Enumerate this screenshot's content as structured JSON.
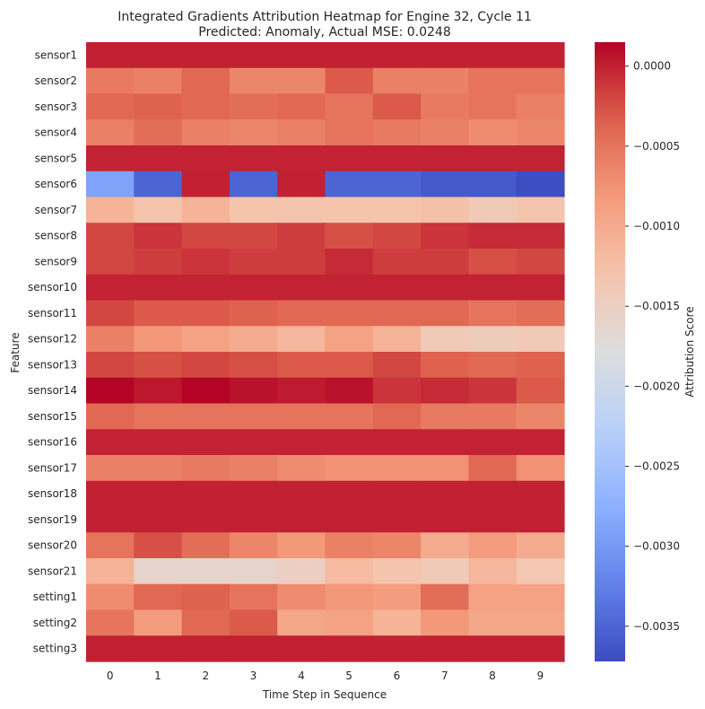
{
  "chart_data": {
    "type": "heatmap",
    "title": "Integrated Gradients Attribution Heatmap for Engine 32, Cycle 11",
    "subtitle": "Predicted: Anomaly, Actual MSE: 0.0248",
    "xlabel": "Time Step in Sequence",
    "ylabel": "Feature",
    "colorbar_label": "Attribution Score",
    "colormap": "coolwarm",
    "vmin": -0.00372,
    "vmax": 0.00015,
    "colorbar_ticks": [
      0.0,
      -0.0005,
      -0.001,
      -0.0015,
      -0.002,
      -0.0025,
      -0.003,
      -0.0035
    ],
    "colorbar_tick_labels": [
      "0.0000",
      "−0.0005",
      "−0.0010",
      "−0.0015",
      "−0.0020",
      "−0.0025",
      "−0.0030",
      "−0.0035"
    ],
    "x": [
      "0",
      "1",
      "2",
      "3",
      "4",
      "5",
      "6",
      "7",
      "8",
      "9"
    ],
    "y": [
      "sensor1",
      "sensor2",
      "sensor3",
      "sensor4",
      "sensor5",
      "sensor6",
      "sensor7",
      "sensor8",
      "sensor9",
      "sensor10",
      "sensor11",
      "sensor12",
      "sensor13",
      "sensor14",
      "sensor15",
      "sensor16",
      "sensor17",
      "sensor18",
      "sensor19",
      "sensor20",
      "sensor21",
      "setting1",
      "setting2",
      "setting3"
    ],
    "values": [
      [
        0.0,
        0.0,
        0.0,
        0.0,
        0.0,
        0.0,
        0.0,
        0.0,
        0.0,
        0.0
      ],
      [
        -0.00055,
        -0.0006,
        -0.0004,
        -0.00065,
        -0.00065,
        -0.0003,
        -0.0006,
        -0.0006,
        -0.0005,
        -0.0005
      ],
      [
        -0.0004,
        -0.00035,
        -0.0004,
        -0.00045,
        -0.0004,
        -0.0005,
        -0.0003,
        -0.00055,
        -0.0005,
        -0.0006
      ],
      [
        -0.0006,
        -0.00045,
        -0.0006,
        -0.00065,
        -0.0006,
        -0.0005,
        -0.00055,
        -0.0006,
        -0.0007,
        -0.00065
      ],
      [
        -1e-05,
        -1e-05,
        -1e-05,
        -1e-05,
        -1e-05,
        -1e-05,
        -1e-05,
        -1e-05,
        -1e-05,
        -1e-05
      ],
      [
        -0.0029,
        -0.0035,
        0.0,
        -0.0035,
        0.0,
        -0.0035,
        -0.0035,
        -0.0036,
        -0.0036,
        -0.0037
      ],
      [
        -0.0011,
        -0.0013,
        -0.0011,
        -0.0013,
        -0.0013,
        -0.0013,
        -0.0013,
        -0.00125,
        -0.0014,
        -0.0013
      ],
      [
        -0.0002,
        -0.0001,
        -0.0002,
        -0.0002,
        -0.00015,
        -0.00025,
        -0.0002,
        -0.0001,
        -5e-05,
        -5e-05
      ],
      [
        -0.0002,
        -0.00015,
        -0.0001,
        -0.00015,
        -0.00015,
        -5e-05,
        -0.00015,
        -0.00015,
        -0.00025,
        -0.0002
      ],
      [
        -1e-05,
        -1e-05,
        -1e-05,
        -1e-05,
        -1e-05,
        -1e-05,
        -1e-05,
        -1e-05,
        -1e-05,
        -1e-05
      ],
      [
        -0.0002,
        -0.0003,
        -0.0003,
        -0.00035,
        -0.0004,
        -0.0004,
        -0.0004,
        -0.0004,
        -0.0005,
        -0.00045
      ],
      [
        -0.0006,
        -0.0008,
        -0.0009,
        -0.001,
        -0.00115,
        -0.0009,
        -0.0011,
        -0.0014,
        -0.00145,
        -0.0014
      ],
      [
        -0.0002,
        -0.00025,
        -0.0002,
        -0.00025,
        -0.0003,
        -0.0003,
        -0.0002,
        -0.00035,
        -0.0004,
        -0.00035
      ],
      [
        0.00015,
        5e-05,
        0.00015,
        8e-05,
        3e-05,
        8e-05,
        -0.0001,
        -5e-05,
        -0.0001,
        -0.0003
      ],
      [
        -0.0004,
        -0.0005,
        -0.0005,
        -0.0005,
        -0.0005,
        -0.0005,
        -0.0004,
        -0.00055,
        -0.00055,
        -0.00065
      ],
      [
        -1e-05,
        -1e-05,
        -1e-05,
        -1e-05,
        -1e-05,
        -1e-05,
        -1e-05,
        -1e-05,
        -1e-05,
        -1e-05
      ],
      [
        -0.0006,
        -0.0006,
        -0.00055,
        -0.0006,
        -0.0007,
        -0.00075,
        -0.00075,
        -0.00075,
        -0.0004,
        -0.00075
      ],
      [
        0.0,
        0.0,
        0.0,
        0.0,
        0.0,
        0.0,
        0.0,
        0.0,
        0.0,
        0.0
      ],
      [
        0.0,
        0.0,
        0.0,
        0.0,
        0.0,
        0.0,
        0.0,
        0.0,
        0.0,
        0.0
      ],
      [
        -0.0005,
        -0.00025,
        -0.00045,
        -0.00065,
        -0.0008,
        -0.0006,
        -0.00065,
        -0.001,
        -0.00085,
        -0.001
      ],
      [
        -0.0011,
        -0.0016,
        -0.0016,
        -0.0016,
        -0.0015,
        -0.0012,
        -0.0013,
        -0.0014,
        -0.00115,
        -0.00135
      ],
      [
        -0.0007,
        -0.0004,
        -0.00035,
        -0.0005,
        -0.0007,
        -0.0008,
        -0.00085,
        -0.00045,
        -0.0009,
        -0.0009
      ],
      [
        -0.0005,
        -0.00085,
        -0.0004,
        -0.0003,
        -0.00095,
        -0.0009,
        -0.0011,
        -0.0008,
        -0.00095,
        -0.00095
      ],
      [
        0.0,
        0.0,
        0.0,
        0.0,
        0.0,
        0.0,
        0.0,
        0.0,
        0.0,
        0.0
      ]
    ]
  }
}
